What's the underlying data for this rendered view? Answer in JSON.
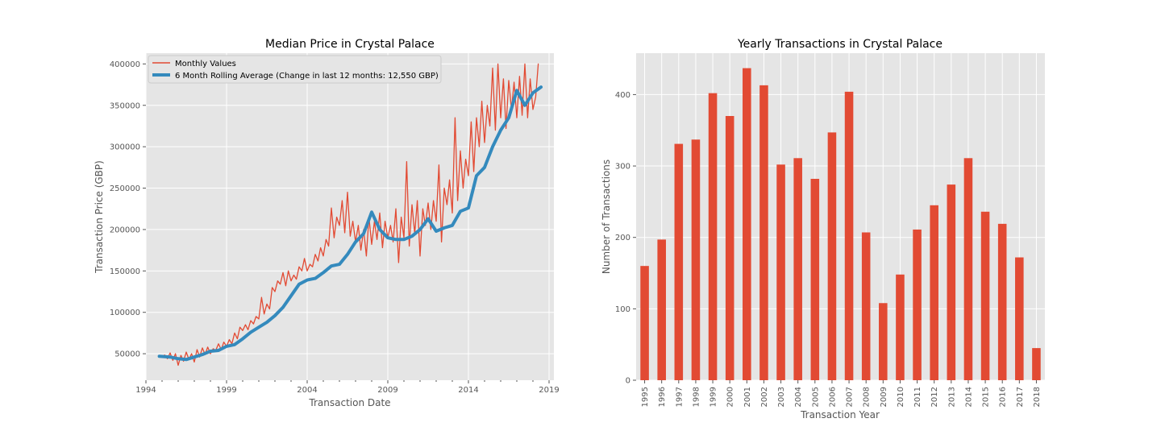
{
  "chart_data": [
    {
      "type": "line",
      "title": "Median Price in Crystal Palace",
      "xlabel": "Transaction Date",
      "ylabel": "Transaction Price (GBP)",
      "xlim": [
        1994.0,
        2019.3
      ],
      "ylim": [
        18000,
        413000
      ],
      "xticks": [
        1994,
        1999,
        2004,
        2009,
        2014,
        2019
      ],
      "xtick_labels": [
        "1994",
        "1999",
        "2004",
        "2009",
        "2014",
        "2019"
      ],
      "yticks": [
        50000,
        100000,
        150000,
        200000,
        250000,
        300000,
        350000,
        400000
      ],
      "ytick_labels": [
        "50000",
        "100000",
        "150000",
        "200000",
        "250000",
        "300000",
        "350000",
        "400000"
      ],
      "grid": true,
      "legend_position": "top-left",
      "series": [
        {
          "name": "Monthly Values",
          "color": "#E24A33",
          "x": [
            1995.0,
            1995.17,
            1995.33,
            1995.5,
            1995.67,
            1995.83,
            1996.0,
            1996.17,
            1996.33,
            1996.5,
            1996.67,
            1996.83,
            1997.0,
            1997.17,
            1997.33,
            1997.5,
            1997.67,
            1997.83,
            1998.0,
            1998.17,
            1998.33,
            1998.5,
            1998.67,
            1998.83,
            1999.0,
            1999.17,
            1999.33,
            1999.5,
            1999.67,
            1999.83,
            2000.0,
            2000.17,
            2000.33,
            2000.5,
            2000.67,
            2000.83,
            2001.0,
            2001.17,
            2001.33,
            2001.5,
            2001.67,
            2001.83,
            2002.0,
            2002.17,
            2002.33,
            2002.5,
            2002.67,
            2002.83,
            2003.0,
            2003.17,
            2003.33,
            2003.5,
            2003.67,
            2003.83,
            2004.0,
            2004.17,
            2004.33,
            2004.5,
            2004.67,
            2004.83,
            2005.0,
            2005.17,
            2005.33,
            2005.5,
            2005.67,
            2005.83,
            2006.0,
            2006.17,
            2006.33,
            2006.5,
            2006.67,
            2006.83,
            2007.0,
            2007.17,
            2007.33,
            2007.5,
            2007.67,
            2007.83,
            2008.0,
            2008.17,
            2008.33,
            2008.5,
            2008.67,
            2008.83,
            2009.0,
            2009.17,
            2009.33,
            2009.5,
            2009.67,
            2009.83,
            2010.0,
            2010.17,
            2010.33,
            2010.5,
            2010.67,
            2010.83,
            2011.0,
            2011.17,
            2011.33,
            2011.5,
            2011.67,
            2011.83,
            2012.0,
            2012.17,
            2012.33,
            2012.5,
            2012.67,
            2012.83,
            2013.0,
            2013.17,
            2013.33,
            2013.5,
            2013.67,
            2013.83,
            2014.0,
            2014.17,
            2014.33,
            2014.5,
            2014.67,
            2014.83,
            2015.0,
            2015.17,
            2015.33,
            2015.5,
            2015.67,
            2015.83,
            2016.0,
            2016.17,
            2016.33,
            2016.5,
            2016.67,
            2016.83,
            2017.0,
            2017.17,
            2017.33,
            2017.5,
            2017.67,
            2017.83,
            2018.0,
            2018.17,
            2018.33
          ],
          "values": [
            47000,
            48500,
            44000,
            51000,
            42000,
            50000,
            36000,
            48000,
            41000,
            52000,
            43000,
            50000,
            40000,
            55000,
            46000,
            57000,
            49000,
            58000,
            50000,
            56000,
            54000,
            62000,
            55000,
            64000,
            59000,
            67000,
            62000,
            75000,
            68000,
            82000,
            78000,
            85000,
            79000,
            90000,
            86000,
            95000,
            92000,
            118000,
            98000,
            110000,
            104000,
            130000,
            125000,
            138000,
            134000,
            148000,
            132000,
            150000,
            138000,
            145000,
            140000,
            155000,
            150000,
            165000,
            150000,
            158000,
            155000,
            170000,
            162000,
            178000,
            168000,
            188000,
            180000,
            226000,
            190000,
            215000,
            205000,
            235000,
            196000,
            245000,
            192000,
            210000,
            185000,
            205000,
            175000,
            200000,
            168000,
            215000,
            182000,
            210000,
            188000,
            220000,
            178000,
            210000,
            190000,
            205000,
            185000,
            225000,
            160000,
            215000,
            190000,
            282000,
            180000,
            230000,
            195000,
            235000,
            168000,
            225000,
            205000,
            232000,
            200000,
            235000,
            210000,
            278000,
            185000,
            250000,
            230000,
            260000,
            220000,
            335000,
            235000,
            295000,
            250000,
            285000,
            265000,
            330000,
            270000,
            335000,
            300000,
            355000,
            305000,
            350000,
            325000,
            395000,
            320000,
            400000,
            335000,
            382000,
            322000,
            380000,
            345000,
            378000,
            335000,
            385000,
            338000,
            400000,
            335000,
            382000,
            345000,
            360000,
            400000
          ],
          "line_width": "thin"
        },
        {
          "name": "6 Month Rolling Average (Change in last 12 months: 12,550 GBP)",
          "color": "#348ABD",
          "x": [
            1994.83,
            1995.5,
            1996.0,
            1996.5,
            1997.0,
            1997.5,
            1998.0,
            1998.5,
            1999.0,
            1999.5,
            2000.0,
            2000.5,
            2001.0,
            2001.5,
            2002.0,
            2002.5,
            2003.0,
            2003.5,
            2004.0,
            2004.5,
            2005.0,
            2005.5,
            2006.0,
            2006.5,
            2007.0,
            2007.5,
            2008.0,
            2008.5,
            2009.0,
            2009.5,
            2010.0,
            2010.5,
            2011.0,
            2011.5,
            2012.0,
            2012.5,
            2013.0,
            2013.5,
            2014.0,
            2014.5,
            2015.0,
            2015.5,
            2016.0,
            2016.5,
            2017.0,
            2017.5,
            2018.0,
            2018.5
          ],
          "values": [
            47000,
            46000,
            44000,
            43000,
            46000,
            49000,
            53000,
            54000,
            59000,
            61000,
            68000,
            76000,
            82000,
            88000,
            96000,
            106000,
            120000,
            134000,
            139000,
            141000,
            148000,
            156000,
            158000,
            170000,
            185000,
            195000,
            221000,
            200000,
            190000,
            188000,
            188000,
            192000,
            200000,
            213000,
            198000,
            202000,
            205000,
            222000,
            226000,
            265000,
            275000,
            300000,
            320000,
            335000,
            368000,
            350000,
            365000,
            372000
          ],
          "line_width": "thick"
        }
      ]
    },
    {
      "type": "bar",
      "title": "Yearly Transactions in Crystal Palace",
      "xlabel": "Transaction Year",
      "ylabel": "Number of Transactions",
      "categories": [
        "1995",
        "1996",
        "1997",
        "1998",
        "1999",
        "2000",
        "2001",
        "2002",
        "2003",
        "2004",
        "2005",
        "2006",
        "2007",
        "2008",
        "2009",
        "2010",
        "2011",
        "2012",
        "2013",
        "2014",
        "2015",
        "2016",
        "2017",
        "2018"
      ],
      "values": [
        160,
        197,
        331,
        337,
        402,
        370,
        437,
        413,
        302,
        311,
        282,
        347,
        404,
        207,
        108,
        148,
        211,
        245,
        274,
        311,
        236,
        219,
        172,
        45
      ],
      "ylim": [
        0,
        458
      ],
      "yticks": [
        0,
        100,
        200,
        300,
        400
      ],
      "ytick_labels": [
        "0",
        "100",
        "200",
        "300",
        "400"
      ],
      "grid": true,
      "color": "#E24A33"
    }
  ]
}
